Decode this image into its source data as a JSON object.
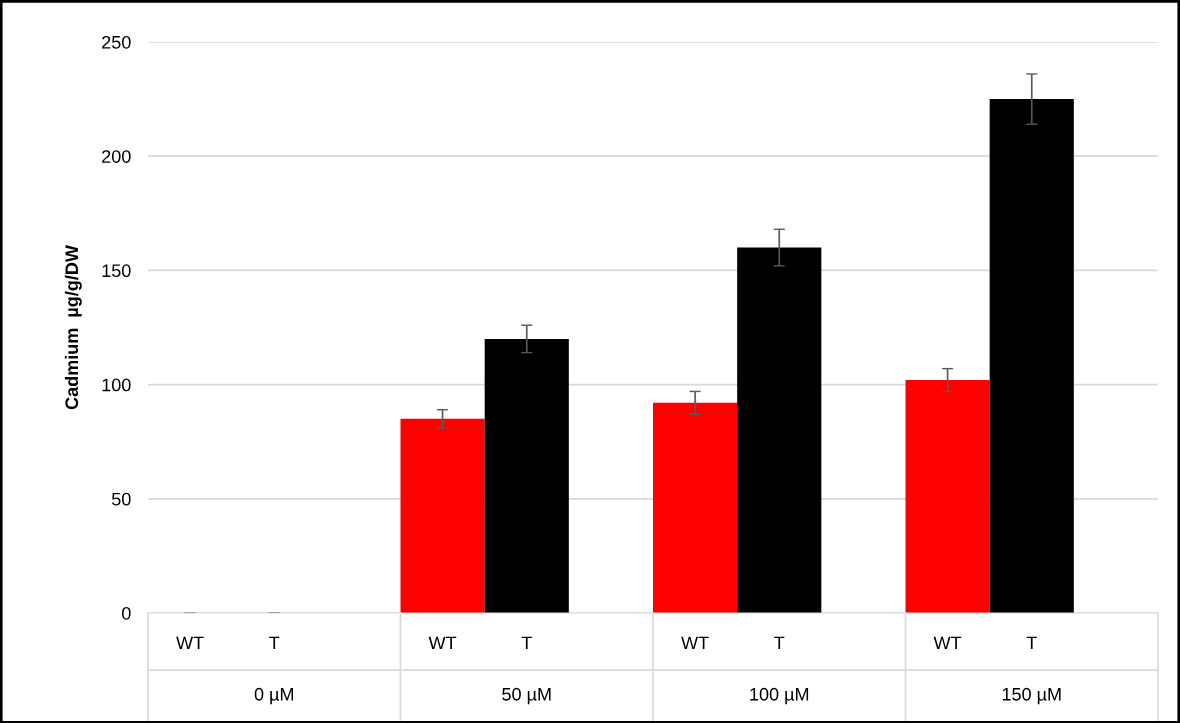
{
  "chart_data": {
    "type": "bar",
    "ylabel": "Cadmium  µg/g/DW",
    "categories": [
      "0 µM",
      "50 µM",
      "100 µM",
      "150 µM"
    ],
    "series": [
      {
        "name": "WT",
        "color": "#ff0000",
        "values": [
          0,
          85,
          92,
          102
        ],
        "errors": [
          0,
          4,
          5,
          5
        ]
      },
      {
        "name": "T",
        "color": "#000000",
        "values": [
          0,
          120,
          160,
          225
        ],
        "errors": [
          0,
          6,
          8,
          11
        ]
      }
    ],
    "ylim": [
      0,
      250
    ],
    "yticks": [
      0,
      50,
      100,
      150,
      200,
      250
    ],
    "grid": "y",
    "legend": false
  }
}
